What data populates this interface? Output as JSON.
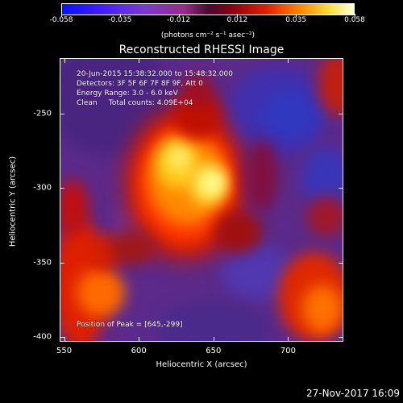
{
  "colorbar": {
    "ticks": [
      "-0.058",
      "-0.035",
      "-0.012",
      "0.012",
      "0.035",
      "0.058"
    ],
    "units": "(photons cm⁻² s⁻¹ asec⁻²)",
    "colors": [
      "#0a10ff",
      "#7a3ad0",
      "#4a0a30",
      "#e22000",
      "#ff8a00",
      "#ffffe0"
    ]
  },
  "title": "Reconstructed RHESSI Image",
  "info": {
    "time": "20-Jun-2015 15:38:32.000 to 15:48:32.000",
    "detectors": "Detectors: 3F 5F 6F 7F 8F 9F, Att 0",
    "energy": "Energy Range: 3.0 - 6.0 keV",
    "clean": "Clean     Total counts: 4.09E+04",
    "peak": "Position of Peak = [645,-299]"
  },
  "axes": {
    "xlabel": "Heliocentric X (arcsec)",
    "ylabel": "Heliocentric Y (arcsec)",
    "xticks": [
      "550",
      "600",
      "650",
      "700"
    ],
    "yticks": [
      "-250",
      "-300",
      "-350",
      "-400"
    ],
    "xrange": [
      547,
      737
    ],
    "yrange": [
      -403,
      -213
    ]
  },
  "footer": {
    "date": "27-Nov-2017 16:09"
  }
}
